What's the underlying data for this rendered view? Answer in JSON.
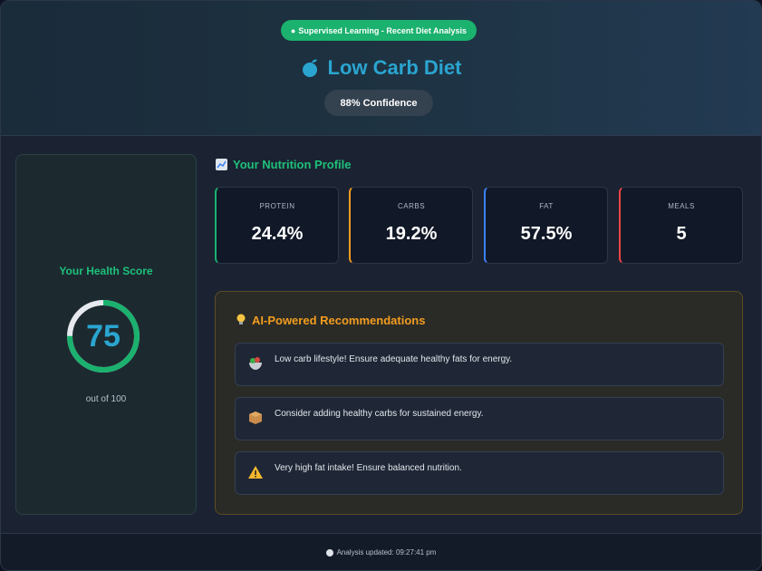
{
  "header": {
    "badge_text": "Supervised Learning - Recent Diet Analysis",
    "badge_icon": "brain-icon",
    "diet_name": "Low Carb Diet",
    "diet_icon": "apple-icon",
    "confidence_text": "88% Confidence"
  },
  "health_score": {
    "title": "Your Health Score",
    "value": "75",
    "fraction": 0.75,
    "subtitle": "out of 100",
    "ring_color": "#1bb16e"
  },
  "profile": {
    "title": "Your Nutrition Profile",
    "icon": "chart-icon",
    "stats": [
      {
        "label": "PROTEIN",
        "value": "24.4%",
        "accent": "#1bb16e"
      },
      {
        "label": "CARBS",
        "value": "19.2%",
        "accent": "#f39c1f"
      },
      {
        "label": "FAT",
        "value": "57.5%",
        "accent": "#3b82f6"
      },
      {
        "label": "MEALS",
        "value": "5",
        "accent": "#ef4444"
      }
    ]
  },
  "recommendations": {
    "title": "AI-Powered Recommendations",
    "icon": "lightbulb-icon",
    "items": [
      {
        "icon": "salad-icon",
        "text": "Low carb lifestyle! Ensure adequate healthy fats for energy."
      },
      {
        "icon": "box-icon",
        "text": "Consider adding healthy carbs for sustained energy."
      },
      {
        "icon": "warning-icon",
        "text": "Very high fat intake! Ensure balanced nutrition."
      }
    ]
  },
  "footer": {
    "icon": "clock-icon",
    "text": "Analysis updated: 09:27:41 pm"
  }
}
